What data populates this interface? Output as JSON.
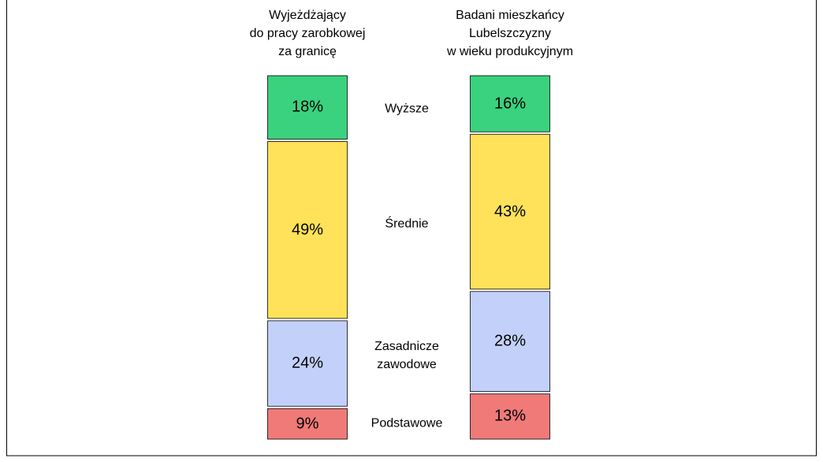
{
  "chart_data": {
    "type": "bar",
    "stacked": true,
    "categories": [
      "Wyjeżdżający\ndo pracy zarobkowej\nza granicę",
      "Badani mieszkańcy\nLubelszczyzny\nw wieku produkcyjnym"
    ],
    "series": [
      {
        "name": "Podstawowe",
        "color": "#ef7a78",
        "values": [
          9,
          13
        ],
        "value_labels": [
          "9%",
          "13%"
        ]
      },
      {
        "name": "Zasadnicze\nzawodowe",
        "color": "#c3d1fa",
        "values": [
          24,
          28
        ],
        "value_labels": [
          "24%",
          "28%"
        ]
      },
      {
        "name": "Średnie",
        "color": "#ffe15a",
        "values": [
          49,
          43
        ],
        "value_labels": [
          "49%",
          "43%"
        ]
      },
      {
        "name": "Wyższe",
        "color": "#3ad27e",
        "values": [
          18,
          16
        ],
        "value_labels": [
          "18%",
          "16%"
        ]
      }
    ]
  }
}
